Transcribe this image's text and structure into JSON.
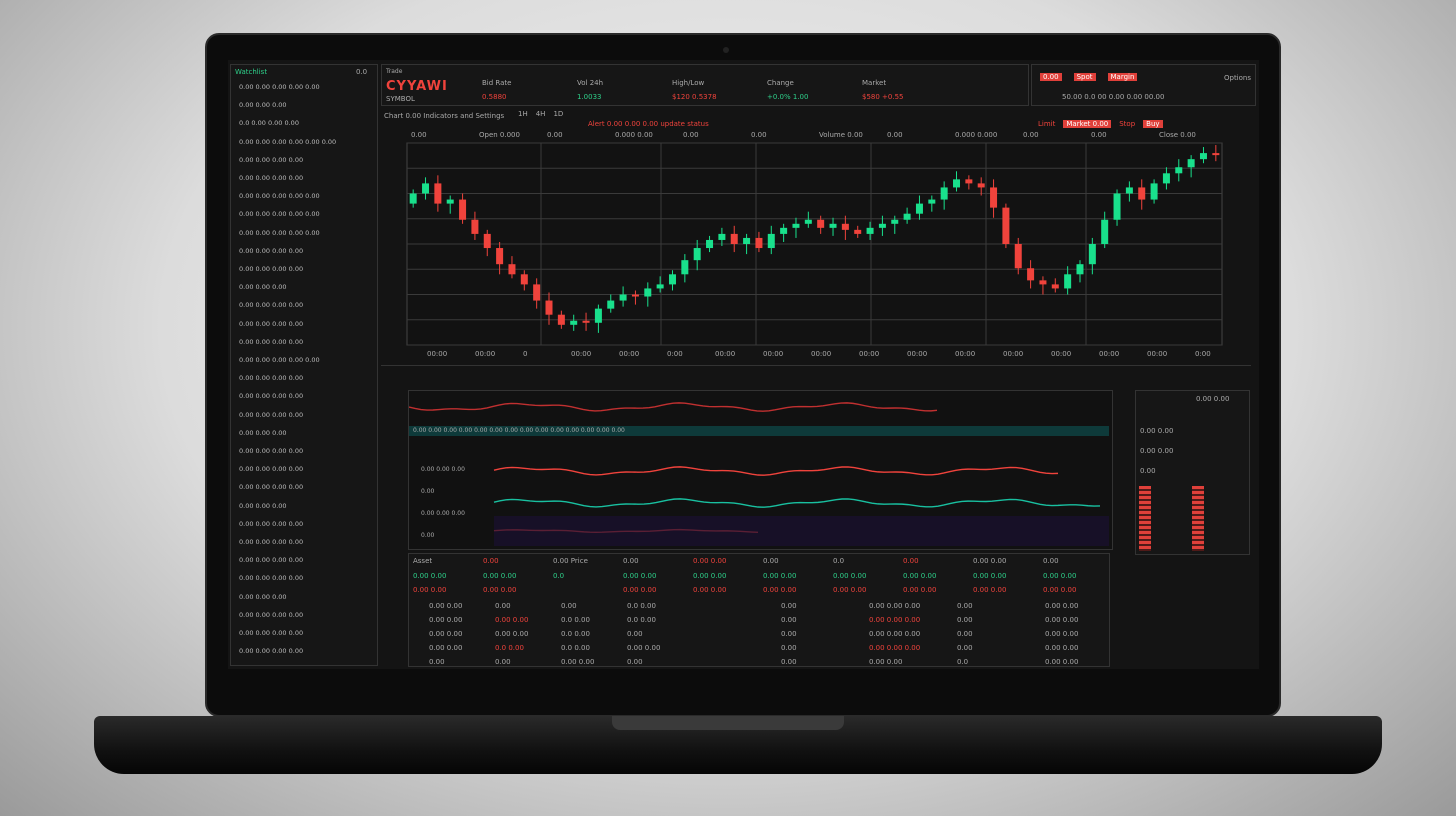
{
  "brand": {
    "name": "CYYAWI",
    "sub": "SYMBOL",
    "top": "Trade"
  },
  "header": {
    "stats": [
      {
        "label": "Bid Rate",
        "value": "0.5880",
        "color": "#f0433c"
      },
      {
        "label": "Vol 24h",
        "value": "1.0033",
        "color": "#2ed08a"
      },
      {
        "label": "High/Low",
        "value": "$120 0.5378",
        "color": "#f0433c"
      },
      {
        "label": "Change",
        "value": "+0.0% 1.00",
        "color": "#2ed08a"
      },
      {
        "label": "Market",
        "value": "$580 +0.55",
        "color": "#f0433c"
      }
    ],
    "right_buttons": [
      "0.00",
      "Spot",
      "Margin"
    ],
    "right_label": "Options",
    "right_row": "50.00  0.0 00  0.00  0.00  00.00"
  },
  "toolbar": {
    "left": "Chart 0.00 Indicators and Settings",
    "timeframes": [
      "1H",
      "4H",
      "1D"
    ],
    "alert": "Alert 0.00 0.00 0.00 update status",
    "right": [
      "Limit",
      "Market 0.00",
      "Stop",
      "Buy"
    ]
  },
  "chart_header": [
    "0.00",
    "Open 0.000",
    "0.00",
    "0.000 0.00",
    "0.00",
    "0.00",
    "Volume 0.00",
    "0.00",
    "0.000 0.000",
    "0.00",
    "0.00",
    "Close 0.00"
  ],
  "chart_data": {
    "type": "candlestick",
    "closes": [
      75,
      80,
      70,
      72,
      62,
      55,
      48,
      40,
      35,
      30,
      22,
      15,
      10,
      12,
      11,
      18,
      22,
      25,
      24,
      28,
      30,
      35,
      42,
      48,
      52,
      55,
      50,
      53,
      48,
      55,
      58,
      60,
      62,
      58,
      60,
      57,
      55,
      58,
      60,
      62,
      65,
      70,
      72,
      78,
      82,
      80,
      78,
      68,
      50,
      38,
      32,
      30,
      28,
      35,
      40,
      50,
      62,
      75,
      78,
      72,
      80,
      85,
      88,
      92,
      95,
      94
    ],
    "ylim": [
      0,
      100
    ],
    "up_color": "#19e08c",
    "down_color": "#f0433c",
    "x_ticks": [
      "00:00",
      "00:00",
      "0",
      "00:00",
      "00:00",
      "0:00",
      "00:00",
      "00:00",
      "00:00",
      "00:00",
      "00:00",
      "00:00",
      "00:00",
      "00:00",
      "00:00",
      "00:00",
      "0:00"
    ]
  },
  "sidebar": {
    "title": "Watchlist",
    "tab": "0.0",
    "items": [
      "0.00 0.00 0.00 0.00 0.00",
      "0.00 0.00 0.00",
      "0.0 0.00 0.00 0.00",
      "0.00 0.00 0.00 0.00 0.00 0.00",
      "0.00 0.00 0.00 0.00",
      "0.00 0.00 0.00 0.00",
      "0.00 0.00 0.00 0.00 0.00",
      "0.00 0.00 0.00 0.00 0.00",
      "0.00 0.00 0.00 0.00 0.00",
      "0.00 0.00 0.00 0.00",
      "0.00 0.00 0.00 0.00",
      "0.00 0.00 0.00",
      "0.00 0.00 0.00 0.00",
      "0.00 0.00 0.00 0.00",
      "0.00 0.00 0.00 0.00",
      "0.00 0.00 0.00 0.00 0.00",
      "0.00 0.00 0.00 0.00",
      "0.00 0.00 0.00 0.00",
      "0.00 0.00 0.00 0.00",
      "0.00 0.00 0.00",
      "0.00 0.00 0.00 0.00",
      "0.00 0.00 0.00 0.00",
      "0.00 0.00 0.00 0.00",
      "0.00 0.00 0.00",
      "0.00 0.00 0.00 0.00",
      "0.00 0.00 0.00 0.00",
      "0.00 0.00 0.00 0.00",
      "0.00 0.00 0.00 0.00",
      "0.00 0.00 0.00",
      "0.00 0.00 0.00 0.00",
      "0.00 0.00 0.00 0.00",
      "0.00 0.00 0.00 0.00"
    ]
  },
  "indicator": {
    "labels": [
      "0.00 0.00 0.00",
      "0.00",
      "0.00 0.00 0.00",
      "0.00"
    ],
    "header": "0.00  0.00  0.00  0.00  0.00  0.00  0.00  0.00  0.00  0.00  0.00  0.00  0.00  0.00"
  },
  "orderbook": {
    "header": "0.00  0.00",
    "rows": [
      "0.00 0.00",
      "0.00 0.00",
      "0.00"
    ]
  },
  "table": {
    "headers": [
      "Asset",
      "0.00",
      "0.00 Price",
      "0.00",
      "0.00 0.00",
      "0.00",
      "0.0",
      "0.00",
      "0.00 0.00",
      "0.00"
    ],
    "summary": [
      [
        "0.00 0.00",
        "0.00 0.00"
      ],
      [
        "0.00 0.00",
        "0.00 0.00"
      ],
      [
        "0.0",
        ""
      ],
      [
        "0.00 0.00",
        "0.00 0.00"
      ],
      [
        "0.00 0.00",
        "0.00 0.00"
      ],
      [
        "0.00 0.00",
        "0.00 0.00"
      ],
      [
        "0.00 0.00",
        "0.00 0.00"
      ],
      [
        "0.00 0.00",
        "0.00 0.00"
      ],
      [
        "0.00 0.00",
        "0.00 0.00"
      ],
      [
        "0.00 0.00",
        "0.00 0.00"
      ]
    ],
    "rows": [
      [
        "0.00 0.00",
        "0.00",
        "0.00",
        "0.0 0.00",
        "0.00",
        "0.00 0.00 0.00",
        "0.00",
        "0.00 0.00"
      ],
      [
        "0.00 0.00",
        "0.00 0.00",
        "0.0 0.00",
        "0.0 0.00",
        "0.00",
        "0.00 0.00 0.00",
        "0.00",
        "0.00 0.00"
      ],
      [
        "0.00 0.00",
        "0.00 0.00",
        "0.0 0.00",
        "0.00",
        "0.00",
        "0.00 0.00 0.00",
        "0.00",
        "0.00 0.00"
      ],
      [
        "0.00 0.00",
        "0.0 0.00",
        "0.0 0.00",
        "0.00 0.00",
        "0.00",
        "0.00 0.00 0.00",
        "0.00",
        "0.00 0.00"
      ],
      [
        "0.00",
        "0.00",
        "0.00 0.00",
        "0.00",
        "0.00",
        "0.00 0.00",
        "0.0",
        "0.00 0.00"
      ]
    ]
  }
}
